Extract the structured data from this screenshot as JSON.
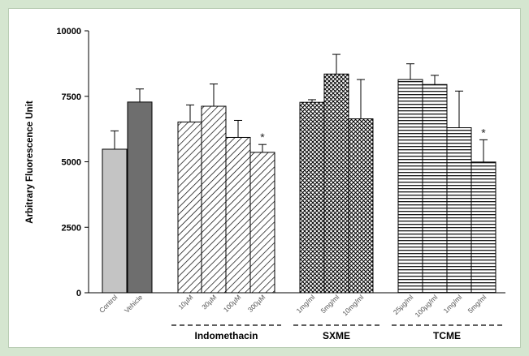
{
  "chart_data": {
    "type": "bar",
    "ylabel": "Arbitrary Fluorescence Unit",
    "ylim": [
      0,
      10000
    ],
    "yticks": [
      "0",
      "2500",
      "5000",
      "7500",
      "10000"
    ],
    "categories": [
      "Control",
      "Vehicle",
      "10µM",
      "30µM",
      "100µM",
      "300µM",
      "1mg/ml",
      "5mg/ml",
      "10mg/ml",
      "25µg/ml",
      "100µg/ml",
      "1mg/ml",
      "5mg/ml"
    ],
    "values": [
      5480,
      7280,
      6520,
      7120,
      5930,
      5360,
      7270,
      8350,
      6640,
      8140,
      7950,
      6300,
      4990
    ],
    "errors": [
      700,
      500,
      650,
      850,
      650,
      300,
      100,
      750,
      1500,
      600,
      350,
      1400,
      850
    ],
    "significance": [
      "",
      "",
      "",
      "",
      "",
      "*",
      "",
      "",
      "",
      "",
      "",
      "",
      "*"
    ],
    "fills": [
      "light-gray",
      "dark-gray",
      "diagonal-hatch",
      "diagonal-hatch",
      "diagonal-hatch",
      "diagonal-hatch",
      "cross-hatch",
      "cross-hatch",
      "cross-hatch",
      "horizontal-lines",
      "horizontal-lines",
      "horizontal-lines",
      "horizontal-lines"
    ],
    "groups": [
      {
        "label": "Indomethacin",
        "members": [
          2,
          3,
          4,
          5
        ]
      },
      {
        "label": "SXME",
        "members": [
          6,
          7,
          8
        ]
      },
      {
        "label": "TCME",
        "members": [
          9,
          10,
          11,
          12
        ]
      }
    ],
    "colors": {
      "control": "#c4c4c4",
      "vehicle": "#6e6e6e",
      "background": "#d5e6d0"
    }
  }
}
